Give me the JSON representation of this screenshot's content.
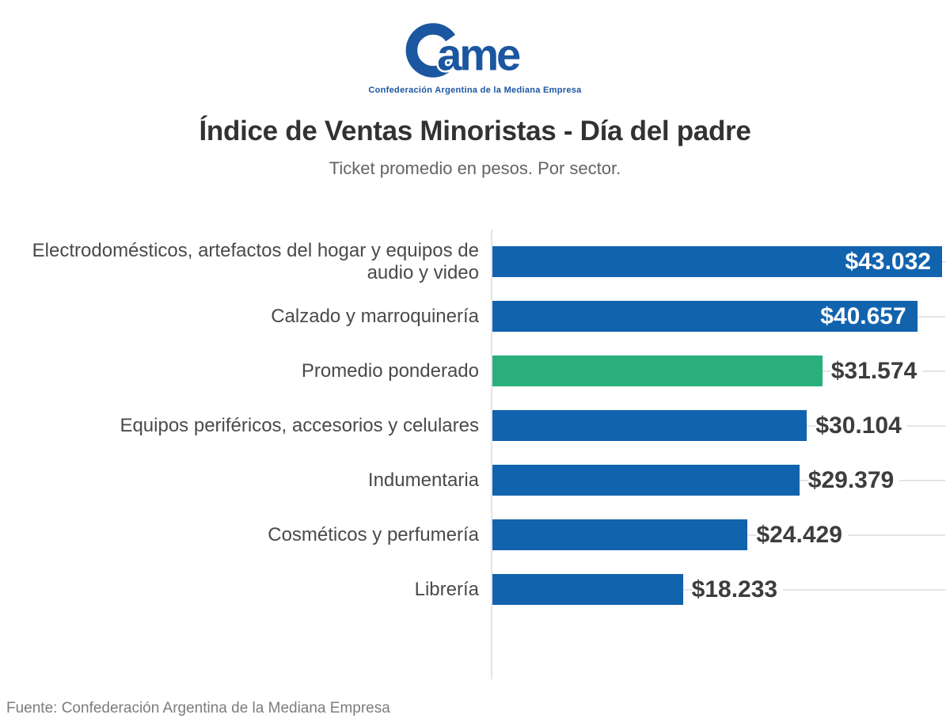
{
  "logo": {
    "name": "CAME",
    "wordmark": "ame",
    "subtext": "Confederación Argentina de la Mediana Empresa",
    "color": "#1b56a0"
  },
  "header": {
    "title": "Índice de Ventas Minoristas - Día del padre",
    "subtitle": "Ticket promedio en pesos. Por sector."
  },
  "chart_data": {
    "type": "bar",
    "orientation": "horizontal",
    "title": "Índice de Ventas Minoristas - Día del padre",
    "subtitle": "Ticket promedio en pesos. Por sector.",
    "xlabel": "",
    "ylabel": "",
    "xlim": [
      0,
      43032
    ],
    "xmax": 43032,
    "legend": "none",
    "grid": "faint horizontal leader lines at each row, right side only",
    "categories": [
      "Electrodomésticos, artefactos del hogar y equipos de audio y video",
      "Calzado y marroquinería",
      "Promedio ponderado",
      "Equipos periféricos, accesorios y celulares",
      "Indumentaria",
      "Cosméticos y perfumería",
      "Librería"
    ],
    "values": [
      43032,
      40657,
      31574,
      30104,
      29379,
      24429,
      18233
    ],
    "value_labels": [
      "$43.032",
      "$40.657",
      "$31.574",
      "$30.104",
      "$29.379",
      "$24.429",
      "$18.233"
    ],
    "value_label_inside": [
      true,
      true,
      false,
      false,
      false,
      false,
      false
    ],
    "highlight_index": 2,
    "colors": {
      "bar": "#1263ae",
      "highlight": "#2aaf7c",
      "value_inside": "#ffffff",
      "value_outside": "#3d3d3d",
      "gridline": "#e4e4e4"
    }
  },
  "footer": {
    "source": "Fuente: Confederación Argentina de la Mediana Empresa"
  }
}
